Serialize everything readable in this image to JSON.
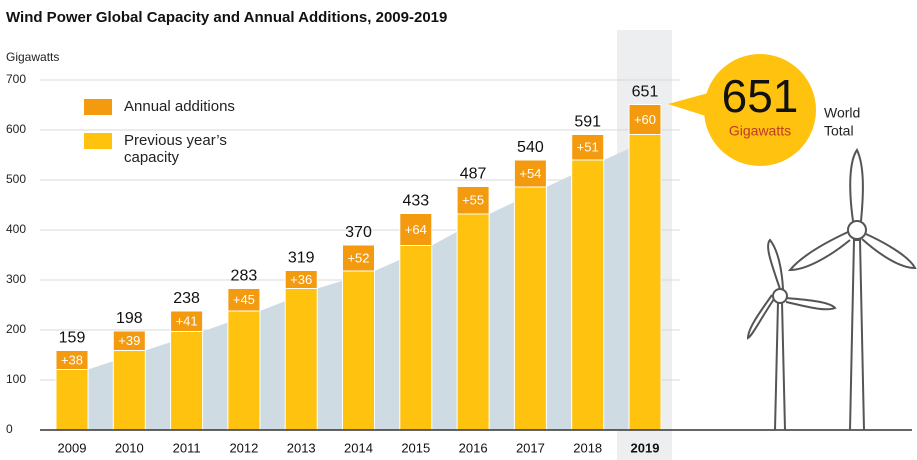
{
  "chart_data": {
    "type": "stacked_bar",
    "title": "Wind Power Global Capacity and Annual Additions, 2009-2019",
    "y_label": "Gigawatts",
    "categories": [
      "2009",
      "2010",
      "2011",
      "2012",
      "2013",
      "2014",
      "2015",
      "2016",
      "2017",
      "2018",
      "2019"
    ],
    "series": [
      {
        "name": "Annual additions",
        "color": "#f39a0e",
        "values": [
          38,
          39,
          41,
          45,
          36,
          52,
          64,
          55,
          54,
          51,
          60
        ],
        "value_labels": [
          "+38",
          "+39",
          "+41",
          "+45",
          "+36",
          "+52",
          "+64",
          "+55",
          "+54",
          "+51",
          "+60"
        ]
      },
      {
        "name": "Previous year’s capacity",
        "color": "#ffc20e",
        "values": [
          121,
          159,
          197,
          238,
          283,
          318,
          369,
          432,
          486,
          540,
          591
        ]
      }
    ],
    "totals": [
      159,
      198,
      238,
      283,
      319,
      370,
      433,
      487,
      540,
      591,
      651
    ],
    "ylim": [
      0,
      700
    ],
    "yticks": [
      0,
      100,
      200,
      300,
      400,
      500,
      600,
      700
    ],
    "grid": true,
    "highlight": "2019",
    "callout": {
      "value": "651",
      "unit": "Gigawatts",
      "note": [
        "World",
        "Total"
      ]
    }
  }
}
